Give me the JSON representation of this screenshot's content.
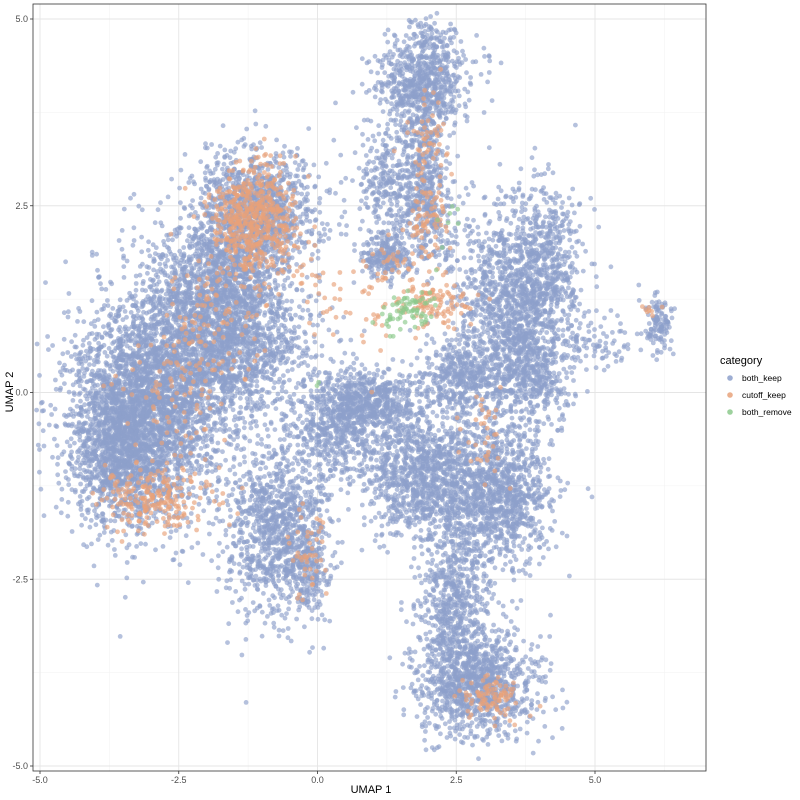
{
  "chart_data": {
    "type": "scatter",
    "title": "",
    "xlabel": "UMAP 1",
    "ylabel": "UMAP 2",
    "xlim": [
      -5.1,
      7.0
    ],
    "ylim": [
      -5.05,
      5.2
    ],
    "x_ticks": [
      -5.0,
      -2.5,
      0.0,
      2.5,
      5.0
    ],
    "x_tick_labels": [
      "-5.0",
      "-2.5",
      "0.0",
      "2.5",
      "5.0"
    ],
    "y_ticks": [
      -5.0,
      -2.5,
      0.0,
      2.5,
      5.0
    ],
    "y_tick_labels": [
      "-5.0",
      "-2.5",
      "0.0",
      "2.5",
      "5.0"
    ],
    "grid": true,
    "legend": {
      "title": "category",
      "placement": "right",
      "entries": [
        {
          "label": "both_keep",
          "color": "#8DA0CB"
        },
        {
          "label": "cutoff_keep",
          "color": "#E8A27A"
        },
        {
          "label": "both_remove",
          "color": "#8CC98C"
        }
      ]
    },
    "point_alpha": 0.65,
    "series": [
      {
        "name": "both_keep",
        "color": "#8DA0CB",
        "clusters": [
          {
            "cx": -3.2,
            "cy": -0.3,
            "sx": 0.65,
            "sy": 0.75,
            "n": 2600
          },
          {
            "cx": -3.6,
            "cy": -0.8,
            "sx": 0.4,
            "sy": 0.45,
            "n": 600
          },
          {
            "cx": -2.3,
            "cy": 0.6,
            "sx": 0.6,
            "sy": 0.8,
            "n": 1400
          },
          {
            "cx": -1.6,
            "cy": 1.4,
            "sx": 0.5,
            "sy": 0.5,
            "n": 900
          },
          {
            "cx": -1.1,
            "cy": 2.45,
            "sx": 0.55,
            "sy": 0.4,
            "n": 1100
          },
          {
            "cx": -1.2,
            "cy": 0.6,
            "sx": 0.6,
            "sy": 0.5,
            "n": 700
          },
          {
            "cx": -0.75,
            "cy": -1.8,
            "sx": 0.45,
            "sy": 0.6,
            "n": 1000
          },
          {
            "cx": -0.15,
            "cy": -2.3,
            "sx": 0.18,
            "sy": 0.4,
            "n": 200
          },
          {
            "cx": 0.3,
            "cy": -0.5,
            "sx": 0.4,
            "sy": 0.4,
            "n": 500
          },
          {
            "cx": 1.0,
            "cy": -0.15,
            "sx": 0.45,
            "sy": 0.22,
            "n": 600
          },
          {
            "cx": 1.9,
            "cy": -1.1,
            "sx": 0.5,
            "sy": 0.45,
            "n": 1000
          },
          {
            "cx": 3.2,
            "cy": -1.4,
            "sx": 0.5,
            "sy": 0.5,
            "n": 1200
          },
          {
            "cx": 2.6,
            "cy": 0.2,
            "sx": 0.35,
            "sy": 0.25,
            "n": 400
          },
          {
            "cx": 2.45,
            "cy": -2.9,
            "sx": 0.3,
            "sy": 0.55,
            "n": 600
          },
          {
            "cx": 2.9,
            "cy": -3.9,
            "sx": 0.55,
            "sy": 0.35,
            "n": 1000
          },
          {
            "cx": 1.9,
            "cy": 4.2,
            "sx": 0.4,
            "sy": 0.35,
            "n": 700
          },
          {
            "cx": 1.9,
            "cy": 3.1,
            "sx": 0.25,
            "sy": 0.55,
            "n": 400
          },
          {
            "cx": 1.2,
            "cy": 2.8,
            "sx": 0.25,
            "sy": 0.45,
            "n": 250
          },
          {
            "cx": 1.2,
            "cy": 1.8,
            "sx": 0.2,
            "sy": 0.15,
            "n": 200
          },
          {
            "cx": 1.95,
            "cy": 2.3,
            "sx": 0.3,
            "sy": 0.35,
            "n": 200
          },
          {
            "cx": 3.4,
            "cy": 1.2,
            "sx": 0.45,
            "sy": 0.65,
            "n": 900
          },
          {
            "cx": 4.1,
            "cy": 1.7,
            "sx": 0.35,
            "sy": 0.55,
            "n": 600
          },
          {
            "cx": 3.8,
            "cy": 0.3,
            "sx": 0.35,
            "sy": 0.35,
            "n": 500
          },
          {
            "cx": 4.9,
            "cy": 0.65,
            "sx": 0.4,
            "sy": 0.15,
            "n": 80
          },
          {
            "cx": 6.1,
            "cy": 0.9,
            "sx": 0.15,
            "sy": 0.2,
            "n": 120
          }
        ]
      },
      {
        "name": "cutoff_keep",
        "color": "#E8A27A",
        "clusters": [
          {
            "cx": -1.15,
            "cy": 2.3,
            "sx": 0.4,
            "sy": 0.35,
            "n": 520
          },
          {
            "cx": -2.9,
            "cy": -1.4,
            "sx": 0.5,
            "sy": 0.25,
            "n": 220
          },
          {
            "cx": -2.5,
            "cy": 0.2,
            "sx": 0.5,
            "sy": 0.5,
            "n": 110
          },
          {
            "cx": -1.6,
            "cy": 1.1,
            "sx": 0.4,
            "sy": 0.4,
            "n": 70
          },
          {
            "cx": 2.1,
            "cy": 1.2,
            "sx": 0.35,
            "sy": 0.2,
            "n": 110
          },
          {
            "cx": 2.0,
            "cy": 2.3,
            "sx": 0.15,
            "sy": 0.25,
            "n": 70
          },
          {
            "cx": 2.0,
            "cy": 3.4,
            "sx": 0.2,
            "sy": 0.4,
            "n": 55
          },
          {
            "cx": 3.15,
            "cy": -4.1,
            "sx": 0.3,
            "sy": 0.15,
            "n": 90
          },
          {
            "cx": -0.15,
            "cy": -2.2,
            "sx": 0.15,
            "sy": 0.3,
            "n": 45
          },
          {
            "cx": 3.0,
            "cy": -0.6,
            "sx": 0.25,
            "sy": 0.3,
            "n": 35
          },
          {
            "cx": 0.8,
            "cy": 1.1,
            "sx": 0.4,
            "sy": 0.35,
            "n": 40
          },
          {
            "cx": 1.4,
            "cy": 1.7,
            "sx": 0.2,
            "sy": 0.15,
            "n": 25
          },
          {
            "cx": -0.2,
            "cy": 1.5,
            "sx": 0.3,
            "sy": 0.3,
            "n": 20
          },
          {
            "cx": 6.0,
            "cy": 1.1,
            "sx": 0.1,
            "sy": 0.05,
            "n": 8
          }
        ]
      },
      {
        "name": "both_remove",
        "color": "#8CC98C",
        "clusters": [
          {
            "cx": 1.75,
            "cy": 1.1,
            "sx": 0.18,
            "sy": 0.12,
            "n": 55
          },
          {
            "cx": 1.3,
            "cy": 0.95,
            "sx": 0.12,
            "sy": 0.1,
            "n": 15
          },
          {
            "cx": 2.4,
            "cy": 2.2,
            "sx": 0.2,
            "sy": 0.15,
            "n": 8
          },
          {
            "cx": 0.0,
            "cy": 0.15,
            "sx": 0.08,
            "sy": 0.08,
            "n": 2
          }
        ]
      }
    ]
  }
}
